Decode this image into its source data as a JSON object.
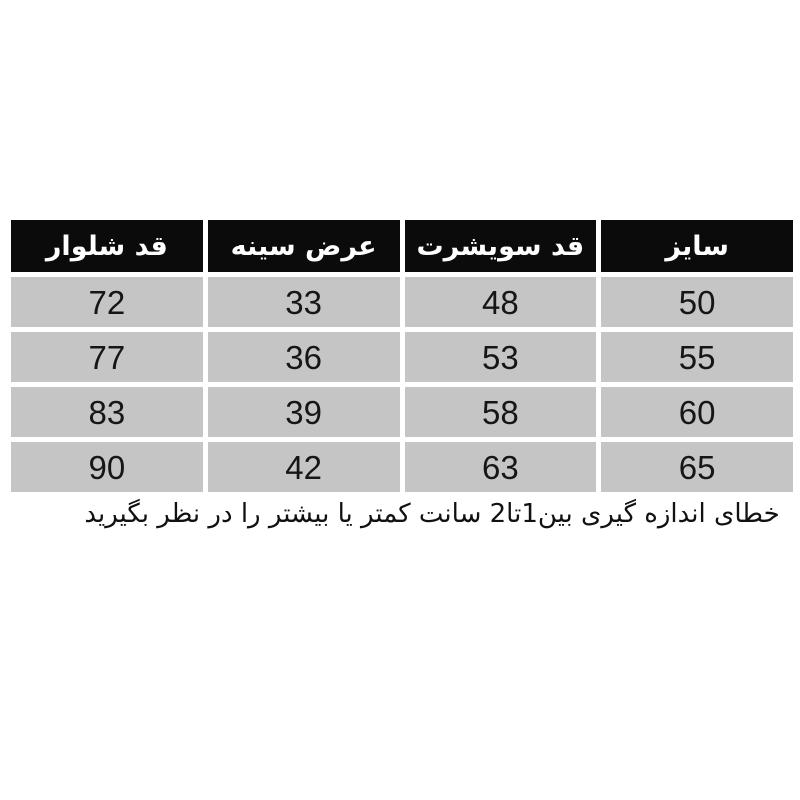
{
  "chart_data": {
    "type": "table",
    "direction": "rtl",
    "title": "",
    "columns": [
      "سایز",
      "قد سویشرت",
      "عرض سینه",
      "قد شلوار"
    ],
    "rows": [
      [
        "50",
        "48",
        "33",
        "72"
      ],
      [
        "55",
        "53",
        "36",
        "77"
      ],
      [
        "60",
        "58",
        "39",
        "83"
      ],
      [
        "65",
        "63",
        "42",
        "90"
      ]
    ],
    "note": "خطای اندازه گیری بین1تا2 سانت کمتر یا بیشتر را در نظر بگیرید"
  },
  "colors": {
    "header_bg": "#0b0b0b",
    "header_text": "#ffffff",
    "cell_bg": "#c5c5c5",
    "cell_text": "#161616",
    "page_bg": "#ffffff"
  }
}
